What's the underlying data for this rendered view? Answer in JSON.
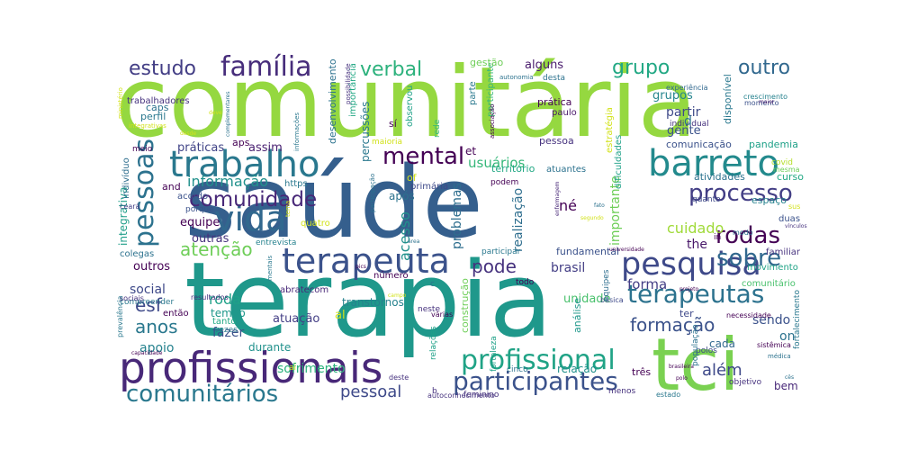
{
  "words": [
    {
      "text": "comunitária",
      "color": "#95d840"
    },
    {
      "text": "saúde",
      "color": "#355f8d"
    },
    {
      "text": "terapia",
      "color": "#1f988b"
    },
    {
      "text": "tci",
      "color": "#7ad151"
    },
    {
      "text": "profissionais",
      "color": "#482878"
    },
    {
      "text": "trabalho",
      "color": "#2a788e"
    },
    {
      "text": "barreto",
      "color": "#238a8d"
    },
    {
      "text": "terapeuta",
      "color": "#3b528b"
    },
    {
      "text": "pesquisa",
      "color": "#3e4989"
    },
    {
      "text": "vida",
      "color": "#31688e"
    },
    {
      "text": "família",
      "color": "#472d7b"
    },
    {
      "text": "pessoas",
      "color": "#2c728e"
    },
    {
      "text": "profissional",
      "color": "#20a386"
    },
    {
      "text": "participantes",
      "color": "#3b528b"
    },
    {
      "text": "comunitários",
      "color": "#2a788e"
    },
    {
      "text": "terapeutas",
      "color": "#2c728e"
    },
    {
      "text": "mental",
      "color": "#440154"
    },
    {
      "text": "processo",
      "color": "#433e85"
    },
    {
      "text": "rodas",
      "color": "#440154"
    },
    {
      "text": "sobre",
      "color": "#31688e"
    },
    {
      "text": "comunidade",
      "color": "#482878"
    },
    {
      "text": "estudo",
      "color": "#433e85"
    },
    {
      "text": "grupo",
      "color": "#22a884"
    },
    {
      "text": "outro",
      "color": "#31688e"
    },
    {
      "text": "verbal",
      "color": "#2db27d"
    },
    {
      "text": "atenção",
      "color": "#6ece58"
    },
    {
      "text": "formação",
      "color": "#3b528b"
    },
    {
      "text": "anos",
      "color": "#2a788e"
    },
    {
      "text": "pode",
      "color": "#46327e"
    },
    {
      "text": "esf",
      "color": "#3e4989"
    },
    {
      "text": "pessoal",
      "color": "#3e4989"
    },
    {
      "text": "além",
      "color": "#3e4989"
    },
    {
      "text": "informação",
      "color": "#21918c"
    },
    {
      "text": "cuidado",
      "color": "#a0da39"
    },
    {
      "text": "acesso",
      "color": "#21918c"
    },
    {
      "text": "práticas",
      "color": "#414487"
    },
    {
      "text": "assim",
      "color": "#481f70"
    },
    {
      "text": "integrativa",
      "color": "#1f9e89"
    },
    {
      "text": "usuários",
      "color": "#35b779"
    },
    {
      "text": "brasil",
      "color": "#433e85"
    },
    {
      "text": "social",
      "color": "#3e4989"
    },
    {
      "text": "roda",
      "color": "#1fa188"
    },
    {
      "text": "outros",
      "color": "#440154"
    },
    {
      "text": "apoio",
      "color": "#26828e"
    },
    {
      "text": "importante",
      "color": "#6ece58"
    },
    {
      "text": "forma",
      "color": "#433e85"
    },
    {
      "text": "fazer",
      "color": "#3b528b"
    },
    {
      "text": "sofrimento",
      "color": "#2db27d"
    },
    {
      "text": "partir",
      "color": "#3e4989"
    },
    {
      "text": "gente",
      "color": "#3b528b"
    },
    {
      "text": "grupos",
      "color": "#25858e"
    },
    {
      "text": "alguns",
      "color": "#481a6c"
    },
    {
      "text": "problemas",
      "color": "#2e6e8e"
    },
    {
      "text": "realização",
      "color": "#2e6e8e"
    },
    {
      "text": "né",
      "color": "#440154"
    },
    {
      "text": "the",
      "color": "#481769"
    },
    {
      "text": "equipe",
      "color": "#440154"
    },
    {
      "text": "outras",
      "color": "#46327e"
    },
    {
      "text": "comunicação",
      "color": "#3b528b"
    },
    {
      "text": "pandemia",
      "color": "#1fa188"
    },
    {
      "text": "atividades",
      "color": "#2c728e"
    },
    {
      "text": "curso",
      "color": "#22a884"
    },
    {
      "text": "espaço",
      "color": "#26828e"
    },
    {
      "text": "duas",
      "color": "#3b528b"
    },
    {
      "text": "familiar",
      "color": "#46327e"
    },
    {
      "text": "movimento",
      "color": "#20a386"
    },
    {
      "text": "ter",
      "color": "#3e4989"
    },
    {
      "text": "sendo",
      "color": "#3b528b"
    },
    {
      "text": "cada",
      "color": "#31688e"
    },
    {
      "text": "bem",
      "color": "#482878"
    },
    {
      "text": "três",
      "color": "#440154"
    },
    {
      "text": "unidade",
      "color": "#4ac16d"
    },
    {
      "text": "fundamental",
      "color": "#3b528b"
    },
    {
      "text": "relação",
      "color": "#21918c"
    },
    {
      "text": "análise",
      "color": "#1f988b"
    },
    {
      "text": "construção",
      "color": "#6ece58"
    },
    {
      "text": "transtornos",
      "color": "#26828e"
    },
    {
      "text": "tempo",
      "color": "#1f988b"
    },
    {
      "text": "atuação",
      "color": "#433e85"
    },
    {
      "text": "durante",
      "color": "#21918c"
    },
    {
      "text": "então",
      "color": "#440154"
    },
    {
      "text": "tanto",
      "color": "#22a884"
    },
    {
      "text": "entrevista",
      "color": "#26828e"
    },
    {
      "text": "comunitário",
      "color": "#4ac16d"
    },
    {
      "text": "desenvolvimento",
      "color": "#2c728e"
    },
    {
      "text": "percussões",
      "color": "#2a788e"
    },
    {
      "text": "importância",
      "color": "#22a884"
    },
    {
      "text": "participante",
      "color": "#35b779"
    },
    {
      "text": "disponível",
      "color": "#2a788e"
    },
    {
      "text": "estratégia",
      "color": "#d2e21b"
    },
    {
      "text": "dificuldades",
      "color": "#1fa188"
    },
    {
      "text": "território",
      "color": "#22a884"
    },
    {
      "text": "atuantes",
      "color": "#2c728e"
    },
    {
      "text": "primária",
      "color": "#3e4989"
    },
    {
      "text": "pessoa",
      "color": "#46327e"
    },
    {
      "text": "prática",
      "color": "#440154"
    },
    {
      "text": "paulo",
      "color": "#481769"
    },
    {
      "text": "individual",
      "color": "#46327e"
    },
    {
      "text": "caps",
      "color": "#2c728e"
    },
    {
      "text": "perfil",
      "color": "#2a788e"
    },
    {
      "text": "trabalhadores",
      "color": "#46327e"
    },
    {
      "text": "gestão",
      "color": "#6ece58"
    },
    {
      "text": "desta",
      "color": "#2c728e"
    },
    {
      "text": "parte",
      "color": "#2a788e"
    },
    {
      "text": "rede",
      "color": "#35b779"
    },
    {
      "text": "observou",
      "color": "#1fa188"
    },
    {
      "text": "experiência",
      "color": "#31688e"
    },
    {
      "text": "crescimento",
      "color": "#26828e"
    },
    {
      "text": "momento",
      "color": "#3b528b"
    },
    {
      "text": "maior",
      "color": "#481a6c"
    },
    {
      "text": "aps",
      "color": "#440154"
    },
    {
      "text": "meio",
      "color": "#440154"
    },
    {
      "text": "indivíduo",
      "color": "#2e6e8e"
    },
    {
      "text": "and",
      "color": "#440154"
    },
    {
      "text": "acordo",
      "color": "#3b528b"
    },
    {
      "text": "porque",
      "color": "#3b528b"
    },
    {
      "text": "https",
      "color": "#2a788e"
    },
    {
      "text": "colegas",
      "color": "#2c728e"
    },
    {
      "text": "compreender",
      "color": "#2a788e"
    },
    {
      "text": "vezes",
      "color": "#2a788e"
    },
    {
      "text": "abratecom",
      "color": "#482878"
    },
    {
      "text": "número",
      "color": "#440154"
    },
    {
      "text": "após",
      "color": "#2c728e"
    },
    {
      "text": "podem",
      "color": "#440154"
    },
    {
      "text": "participar",
      "color": "#2a788e"
    },
    {
      "text": "covid",
      "color": "#b5de2b"
    },
    {
      "text": "mesma",
      "color": "#6ece58"
    },
    {
      "text": "quanto",
      "color": "#3e4989"
    },
    {
      "text": "modo",
      "color": "#2c728e"
    },
    {
      "text": "in",
      "color": "#440154"
    },
    {
      "text": "sus",
      "color": "#d2e21b"
    },
    {
      "text": "necessidade",
      "color": "#440154"
    },
    {
      "text": "básica",
      "color": "#3e4989"
    },
    {
      "text": "equipes",
      "color": "#2e6e8e"
    },
    {
      "text": "polos",
      "color": "#3e4989"
    },
    {
      "text": "fortalecimento",
      "color": "#2a788e"
    },
    {
      "text": "sistêmica",
      "color": "#440154"
    },
    {
      "text": "médica",
      "color": "#2c728e"
    },
    {
      "text": "objetivo",
      "color": "#46327e"
    },
    {
      "text": "população",
      "color": "#2c728e"
    },
    {
      "text": "cinco",
      "color": "#2c728e"
    },
    {
      "text": "fortaleza",
      "color": "#1fa188"
    },
    {
      "text": "feminino",
      "color": "#46327e"
    },
    {
      "text": "menos",
      "color": "#46327e"
    },
    {
      "text": "estado",
      "color": "#2a788e"
    },
    {
      "text": "autoconhecimento",
      "color": "#46327e"
    },
    {
      "text": "todo",
      "color": "#440154"
    },
    {
      "text": "neste",
      "color": "#46327e"
    },
    {
      "text": "várias",
      "color": "#440154"
    },
    {
      "text": "relações",
      "color": "#1fa188"
    },
    {
      "text": "deste",
      "color": "#46327e"
    },
    {
      "text": "ceará",
      "color": "#433e85"
    },
    {
      "text": "sociais",
      "color": "#46327e"
    },
    {
      "text": "resultados",
      "color": "#46327e"
    },
    {
      "text": "prevalência",
      "color": "#2a788e"
    },
    {
      "text": "projeto",
      "color": "#440154"
    },
    {
      "text": "universidade",
      "color": "#440154"
    },
    {
      "text": "área",
      "color": "#2c728e"
    },
    {
      "text": "mentais",
      "color": "#2a788e"
    },
    {
      "text": "autonomia",
      "color": "#2c728e"
    },
    {
      "text": "possibilidade",
      "color": "#46327e"
    },
    {
      "text": "complementares",
      "color": "#2c728e"
    },
    {
      "text": "informações",
      "color": "#2a788e"
    },
    {
      "text": "associação",
      "color": "#440154"
    },
    {
      "text": "ministério",
      "color": "#d2e21b"
    },
    {
      "text": "integrativas",
      "color": "#d2e21b"
    },
    {
      "text": "deve",
      "color": "#d2e21b"
    },
    {
      "text": "segundo",
      "color": "#d2e21b"
    },
    {
      "text": "fato",
      "color": "#2c728e"
    },
    {
      "text": "enfermagem",
      "color": "#482878"
    },
    {
      "text": "tema",
      "color": "#d2e21b"
    },
    {
      "text": "pics",
      "color": "#440154"
    },
    {
      "text": "participação",
      "color": "#2c728e"
    },
    {
      "text": "brasileira",
      "color": "#440154"
    },
    {
      "text": "polo",
      "color": "#440154"
    },
    {
      "text": "vínculos",
      "color": "#46327e"
    },
    {
      "text": "capacidade",
      "color": "#440154"
    },
    {
      "text": "desde",
      "color": "#d2e21b"
    },
    {
      "text": "maioria",
      "color": "#d2e21b"
    },
    {
      "text": "of",
      "color": "#d2e21b"
    },
    {
      "text": "sí",
      "color": "#440154"
    },
    {
      "text": "on",
      "color": "#2c728e"
    },
    {
      "text": "d",
      "color": "#2c728e"
    },
    {
      "text": "et",
      "color": "#440154"
    },
    {
      "text": "al",
      "color": "#d2e21b"
    },
    {
      "text": "b",
      "color": "#46327e"
    },
    {
      "text": "c",
      "color": "#2c728e"
    },
    {
      "text": "ai",
      "color": "#d2e21b"
    },
    {
      "text": "quatro",
      "color": "#d2e21b"
    },
    {
      "text": "campo",
      "color": "#d2e21b"
    },
    {
      "text": "cês",
      "color": "#2c728e"
    }
  ]
}
